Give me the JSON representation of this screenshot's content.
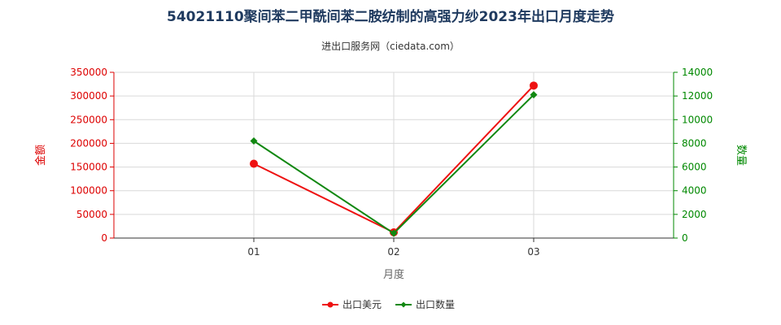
{
  "chart_data": {
    "type": "line",
    "title": "54021110聚间苯二甲酰间苯二胺纺制的高强力纱2023年出口月度走势",
    "subtitle": "进出口服务网（ciedata.com）",
    "xlabel": "月度",
    "categories": [
      "01",
      "02",
      "03"
    ],
    "y_left": {
      "label": "金额",
      "range": [
        0,
        350000
      ],
      "ticks": [
        0,
        50000,
        100000,
        150000,
        200000,
        250000,
        300000,
        350000
      ],
      "color": "#dd0000"
    },
    "y_right": {
      "label": "数量",
      "range": [
        0,
        14000
      ],
      "ticks": [
        0,
        2000,
        4000,
        6000,
        8000,
        10000,
        12000,
        14000
      ],
      "color": "#008800"
    },
    "series": [
      {
        "name": "出口美元",
        "axis": "left",
        "color": "#ee1111",
        "values": [
          157000,
          12000,
          322000
        ]
      },
      {
        "name": "出口数量",
        "axis": "right",
        "color": "#118811",
        "values": [
          8200,
          400,
          12100
        ]
      }
    ],
    "grid": true,
    "legend_position": "bottom"
  }
}
